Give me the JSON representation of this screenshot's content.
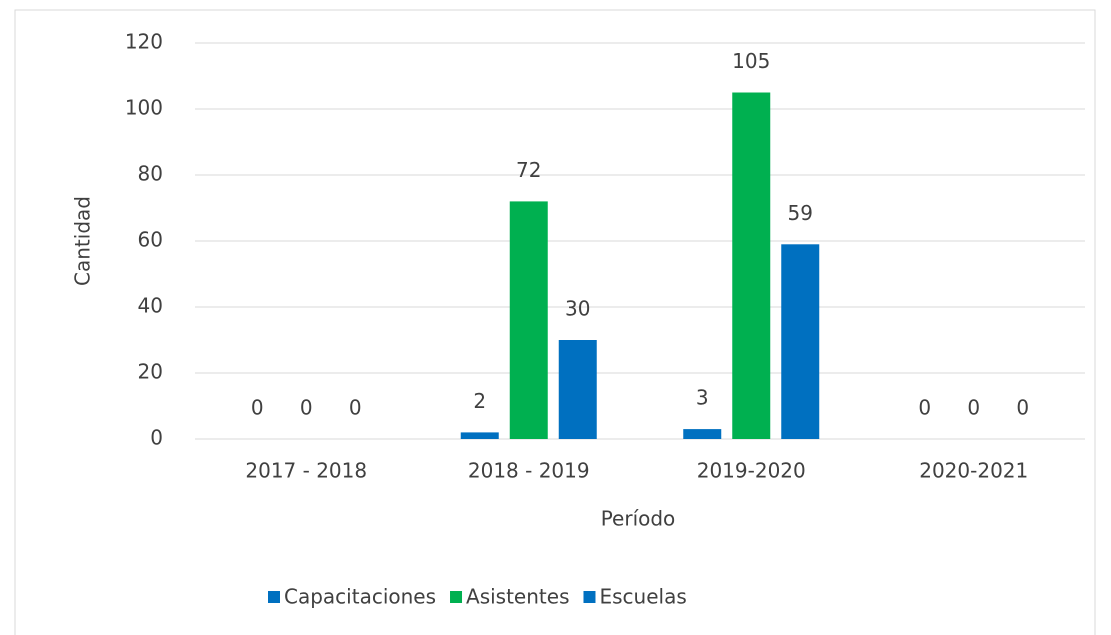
{
  "chart_data": {
    "type": "bar",
    "categories": [
      "2017 - 2018",
      "2018 - 2019",
      "2019-2020",
      "2020-2021"
    ],
    "series": [
      {
        "name": "Capacitaciones",
        "color": "#0070c0",
        "values": [
          0,
          2,
          3,
          0
        ]
      },
      {
        "name": "Asistentes",
        "color": "#00b050",
        "values": [
          0,
          72,
          105,
          0
        ]
      },
      {
        "name": "Escuelas",
        "color": "#0070c0",
        "values": [
          0,
          30,
          59,
          0
        ]
      }
    ],
    "ylim": [
      0,
      120
    ],
    "yticks": [
      0,
      20,
      40,
      60,
      80,
      100,
      120
    ],
    "grid": true,
    "xlabel": "Período",
    "ylabel": "Cantidad",
    "legend": "bottom"
  }
}
